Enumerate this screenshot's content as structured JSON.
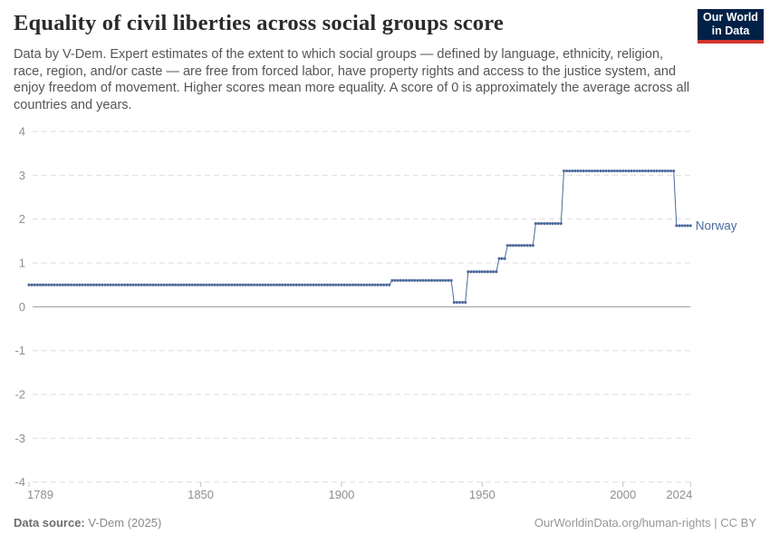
{
  "header": {
    "title": "Equality of civil liberties across social groups score",
    "subtitle": "Data by V-Dem. Expert estimates of the extent to which social groups — defined by language, ethnicity, religion, race, region, and/or caste — are free from forced labor, have property rights and access to the justice system, and enjoy freedom of movement. Higher scores mean more equality. A score of 0 is approximately the average across all countries and years.",
    "logo": {
      "line1": "Our World",
      "line2": "in Data",
      "bg_color": "#002147",
      "accent_color": "#D0342C"
    }
  },
  "chart_data": {
    "type": "line",
    "title": "Equality of civil liberties across social groups score",
    "xlabel": "",
    "ylabel": "",
    "x": {
      "min": 1789,
      "max": 2024,
      "ticks": [
        1789,
        1850,
        1900,
        1950,
        2000,
        2024
      ]
    },
    "y": {
      "min": -4,
      "max": 4,
      "ticks": [
        4,
        3,
        2,
        1,
        0,
        -1,
        -2,
        -3,
        -4
      ],
      "zero_line": true
    },
    "grid": "dashed-horizontal",
    "legend_position": "end-of-line",
    "colors": {
      "grid": "#dedede",
      "zero_line": "#a8a8a8",
      "tick_label": "#8f8f8f",
      "tick_mark": "#c2c2c2"
    },
    "series": [
      {
        "name": "Norway",
        "color": "#4C6A9C",
        "style": "dotted-yearly",
        "segments": [
          {
            "from": 1789,
            "to": 1917,
            "value": 0.5
          },
          {
            "from": 1918,
            "to": 1939,
            "value": 0.6
          },
          {
            "from": 1940,
            "to": 1944,
            "value": 0.1
          },
          {
            "from": 1945,
            "to": 1955,
            "value": 0.8
          },
          {
            "from": 1956,
            "to": 1958,
            "value": 1.1
          },
          {
            "from": 1959,
            "to": 1968,
            "value": 1.4
          },
          {
            "from": 1969,
            "to": 1978,
            "value": 1.9
          },
          {
            "from": 1979,
            "to": 2018,
            "value": 3.1
          },
          {
            "from": 2019,
            "to": 2024,
            "value": 1.85
          }
        ]
      }
    ]
  },
  "footer": {
    "datasource_label": "Data source:",
    "datasource_value": " V-Dem (2025)",
    "attribution": "OurWorldinData.org/human-rights | CC BY"
  }
}
